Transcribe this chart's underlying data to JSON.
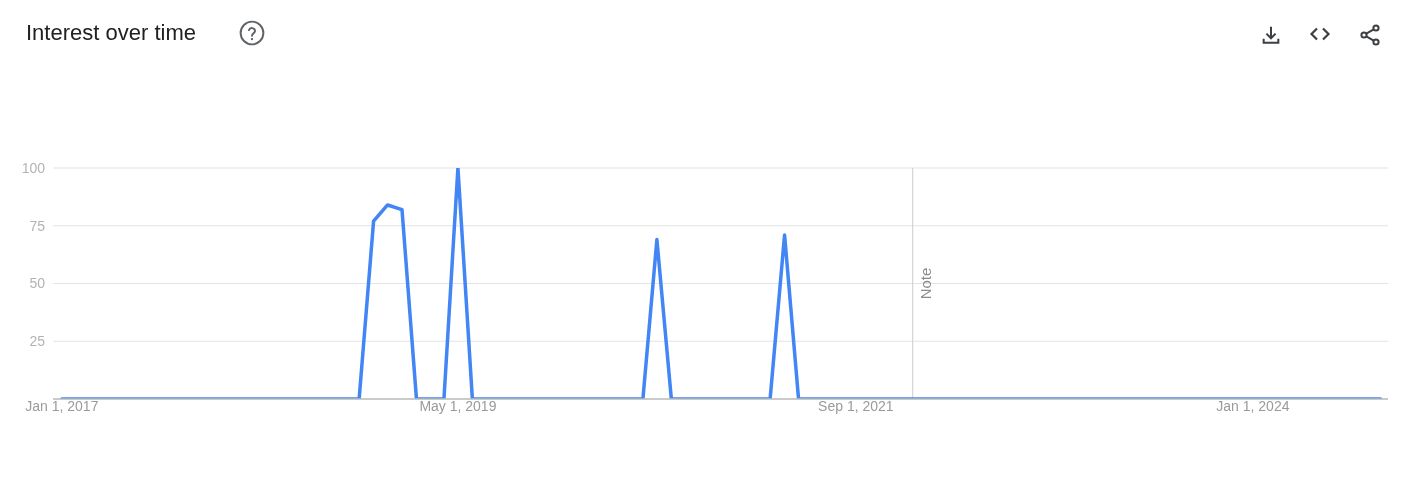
{
  "chart_data": {
    "type": "line",
    "title": "Interest over time",
    "x": [
      "2017-01",
      "2018-10",
      "2018-11",
      "2018-12",
      "2019-01",
      "2019-02",
      "2019-04",
      "2019-05",
      "2019-06",
      "2020-06",
      "2020-07",
      "2020-08",
      "2021-03",
      "2021-04",
      "2021-05",
      "2024-10"
    ],
    "values": [
      0,
      0,
      77,
      84,
      82,
      0,
      0,
      100,
      0,
      0,
      69,
      0,
      0,
      71,
      0,
      0
    ],
    "color": "#4285f4",
    "xlim": [
      "2016-12-13",
      "2024-10-17"
    ],
    "xticks": [
      {
        "value": "2017-01-01",
        "label": "Jan 1, 2017"
      },
      {
        "value": "2019-05-01",
        "label": "May 1, 2019"
      },
      {
        "value": "2021-09-01",
        "label": "Sep 1, 2021"
      },
      {
        "value": "2024-01-01",
        "label": "Jan 1, 2024"
      }
    ],
    "ylim": [
      0,
      100
    ],
    "yticks": [
      25,
      50,
      75,
      100
    ],
    "grid": "y",
    "ref_lines": [
      {
        "axis": "x",
        "value": "2022-01",
        "label": "Note",
        "color": "#cccccc"
      }
    ]
  }
}
